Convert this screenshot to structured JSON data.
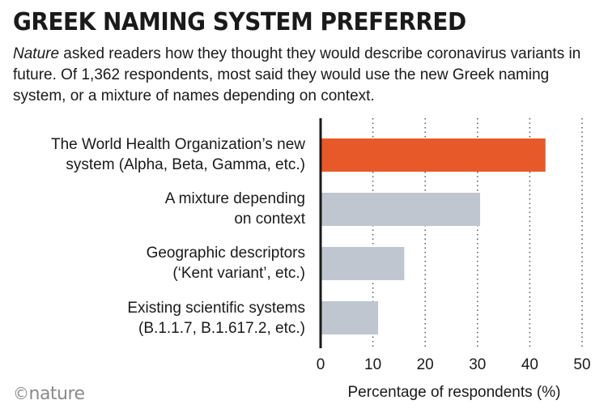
{
  "header": {
    "title": "GREEK NAMING SYSTEM PREFERRED",
    "subtitle_em": "Nature",
    "subtitle_rest": " asked readers how they thought they would describe coronavirus variants in future. Of 1,362 respondents, most said they would use the new Greek naming system, or a mixture of names depending on context."
  },
  "chart_data": {
    "type": "bar",
    "orientation": "horizontal",
    "categories": [
      [
        "The World Health Organization’s new",
        "system (Alpha, Beta, Gamma, etc.)"
      ],
      [
        "A mixture depending",
        "on context"
      ],
      [
        "Geographic descriptors",
        "(‘Kent variant’, etc.)"
      ],
      [
        "Existing scientific systems",
        "(B.1.1.7, B.1.617.2, etc.)"
      ]
    ],
    "values": [
      43,
      30.5,
      16,
      11
    ],
    "highlight_index": 0,
    "xlabel": "Percentage of respondents (%)",
    "ylabel": "",
    "xlim": [
      0,
      50
    ],
    "xticks": [
      "0",
      "10",
      "20",
      "30",
      "40",
      "50"
    ],
    "grid": "vertical dotted"
  },
  "colors": {
    "highlight": "#e8592a",
    "bar": "#bfc6cf",
    "axis": "#1a1a1a",
    "grid": "#555555"
  },
  "footer": {
    "logo_c": "©",
    "logo_text": "nature"
  }
}
